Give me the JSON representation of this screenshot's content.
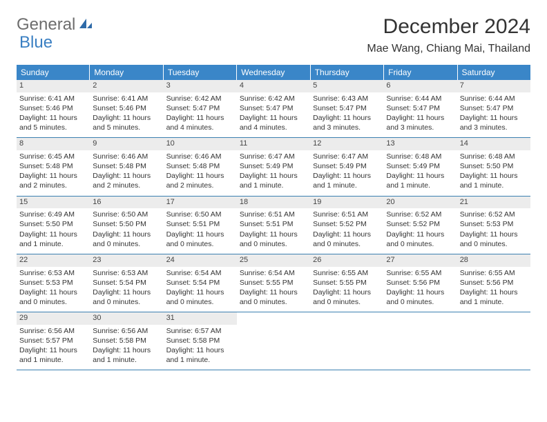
{
  "logo": {
    "part1": "General",
    "part2": "Blue"
  },
  "title": "December 2024",
  "location": "Mae Wang, Chiang Mai, Thailand",
  "weekdays": [
    "Sunday",
    "Monday",
    "Tuesday",
    "Wednesday",
    "Thursday",
    "Friday",
    "Saturday"
  ],
  "colors": {
    "header_bg": "#3a86c8",
    "header_text": "#ffffff",
    "daynum_bg": "#ececec",
    "rule": "#3a7fb0",
    "body_text": "#333333",
    "logo_gray": "#6d6d6d",
    "logo_blue": "#3a7fc2"
  },
  "days": [
    {
      "n": "1",
      "sunrise": "Sunrise: 6:41 AM",
      "sunset": "Sunset: 5:46 PM",
      "day1": "Daylight: 11 hours",
      "day2": "and 5 minutes."
    },
    {
      "n": "2",
      "sunrise": "Sunrise: 6:41 AM",
      "sunset": "Sunset: 5:46 PM",
      "day1": "Daylight: 11 hours",
      "day2": "and 5 minutes."
    },
    {
      "n": "3",
      "sunrise": "Sunrise: 6:42 AM",
      "sunset": "Sunset: 5:47 PM",
      "day1": "Daylight: 11 hours",
      "day2": "and 4 minutes."
    },
    {
      "n": "4",
      "sunrise": "Sunrise: 6:42 AM",
      "sunset": "Sunset: 5:47 PM",
      "day1": "Daylight: 11 hours",
      "day2": "and 4 minutes."
    },
    {
      "n": "5",
      "sunrise": "Sunrise: 6:43 AM",
      "sunset": "Sunset: 5:47 PM",
      "day1": "Daylight: 11 hours",
      "day2": "and 3 minutes."
    },
    {
      "n": "6",
      "sunrise": "Sunrise: 6:44 AM",
      "sunset": "Sunset: 5:47 PM",
      "day1": "Daylight: 11 hours",
      "day2": "and 3 minutes."
    },
    {
      "n": "7",
      "sunrise": "Sunrise: 6:44 AM",
      "sunset": "Sunset: 5:47 PM",
      "day1": "Daylight: 11 hours",
      "day2": "and 3 minutes."
    },
    {
      "n": "8",
      "sunrise": "Sunrise: 6:45 AM",
      "sunset": "Sunset: 5:48 PM",
      "day1": "Daylight: 11 hours",
      "day2": "and 2 minutes."
    },
    {
      "n": "9",
      "sunrise": "Sunrise: 6:46 AM",
      "sunset": "Sunset: 5:48 PM",
      "day1": "Daylight: 11 hours",
      "day2": "and 2 minutes."
    },
    {
      "n": "10",
      "sunrise": "Sunrise: 6:46 AM",
      "sunset": "Sunset: 5:48 PM",
      "day1": "Daylight: 11 hours",
      "day2": "and 2 minutes."
    },
    {
      "n": "11",
      "sunrise": "Sunrise: 6:47 AM",
      "sunset": "Sunset: 5:49 PM",
      "day1": "Daylight: 11 hours",
      "day2": "and 1 minute."
    },
    {
      "n": "12",
      "sunrise": "Sunrise: 6:47 AM",
      "sunset": "Sunset: 5:49 PM",
      "day1": "Daylight: 11 hours",
      "day2": "and 1 minute."
    },
    {
      "n": "13",
      "sunrise": "Sunrise: 6:48 AM",
      "sunset": "Sunset: 5:49 PM",
      "day1": "Daylight: 11 hours",
      "day2": "and 1 minute."
    },
    {
      "n": "14",
      "sunrise": "Sunrise: 6:48 AM",
      "sunset": "Sunset: 5:50 PM",
      "day1": "Daylight: 11 hours",
      "day2": "and 1 minute."
    },
    {
      "n": "15",
      "sunrise": "Sunrise: 6:49 AM",
      "sunset": "Sunset: 5:50 PM",
      "day1": "Daylight: 11 hours",
      "day2": "and 1 minute."
    },
    {
      "n": "16",
      "sunrise": "Sunrise: 6:50 AM",
      "sunset": "Sunset: 5:50 PM",
      "day1": "Daylight: 11 hours",
      "day2": "and 0 minutes."
    },
    {
      "n": "17",
      "sunrise": "Sunrise: 6:50 AM",
      "sunset": "Sunset: 5:51 PM",
      "day1": "Daylight: 11 hours",
      "day2": "and 0 minutes."
    },
    {
      "n": "18",
      "sunrise": "Sunrise: 6:51 AM",
      "sunset": "Sunset: 5:51 PM",
      "day1": "Daylight: 11 hours",
      "day2": "and 0 minutes."
    },
    {
      "n": "19",
      "sunrise": "Sunrise: 6:51 AM",
      "sunset": "Sunset: 5:52 PM",
      "day1": "Daylight: 11 hours",
      "day2": "and 0 minutes."
    },
    {
      "n": "20",
      "sunrise": "Sunrise: 6:52 AM",
      "sunset": "Sunset: 5:52 PM",
      "day1": "Daylight: 11 hours",
      "day2": "and 0 minutes."
    },
    {
      "n": "21",
      "sunrise": "Sunrise: 6:52 AM",
      "sunset": "Sunset: 5:53 PM",
      "day1": "Daylight: 11 hours",
      "day2": "and 0 minutes."
    },
    {
      "n": "22",
      "sunrise": "Sunrise: 6:53 AM",
      "sunset": "Sunset: 5:53 PM",
      "day1": "Daylight: 11 hours",
      "day2": "and 0 minutes."
    },
    {
      "n": "23",
      "sunrise": "Sunrise: 6:53 AM",
      "sunset": "Sunset: 5:54 PM",
      "day1": "Daylight: 11 hours",
      "day2": "and 0 minutes."
    },
    {
      "n": "24",
      "sunrise": "Sunrise: 6:54 AM",
      "sunset": "Sunset: 5:54 PM",
      "day1": "Daylight: 11 hours",
      "day2": "and 0 minutes."
    },
    {
      "n": "25",
      "sunrise": "Sunrise: 6:54 AM",
      "sunset": "Sunset: 5:55 PM",
      "day1": "Daylight: 11 hours",
      "day2": "and 0 minutes."
    },
    {
      "n": "26",
      "sunrise": "Sunrise: 6:55 AM",
      "sunset": "Sunset: 5:55 PM",
      "day1": "Daylight: 11 hours",
      "day2": "and 0 minutes."
    },
    {
      "n": "27",
      "sunrise": "Sunrise: 6:55 AM",
      "sunset": "Sunset: 5:56 PM",
      "day1": "Daylight: 11 hours",
      "day2": "and 0 minutes."
    },
    {
      "n": "28",
      "sunrise": "Sunrise: 6:55 AM",
      "sunset": "Sunset: 5:56 PM",
      "day1": "Daylight: 11 hours",
      "day2": "and 1 minute."
    },
    {
      "n": "29",
      "sunrise": "Sunrise: 6:56 AM",
      "sunset": "Sunset: 5:57 PM",
      "day1": "Daylight: 11 hours",
      "day2": "and 1 minute."
    },
    {
      "n": "30",
      "sunrise": "Sunrise: 6:56 AM",
      "sunset": "Sunset: 5:58 PM",
      "day1": "Daylight: 11 hours",
      "day2": "and 1 minute."
    },
    {
      "n": "31",
      "sunrise": "Sunrise: 6:57 AM",
      "sunset": "Sunset: 5:58 PM",
      "day1": "Daylight: 11 hours",
      "day2": "and 1 minute."
    }
  ]
}
